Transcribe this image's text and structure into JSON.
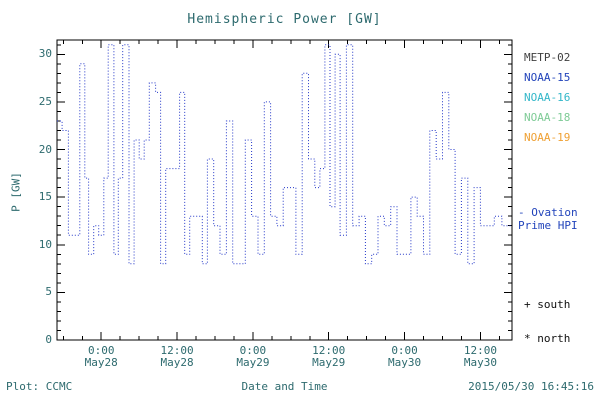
{
  "chart": {
    "title": "Hemispheric Power [GW]",
    "xlabel": "Date and Time",
    "ylabel": "P [GW]"
  },
  "footer": {
    "plot_credit": "Plot: CCMC",
    "timestamp": "2015/05/30 16:45:16"
  },
  "legend": {
    "satellites": [
      {
        "label": "METP-02",
        "color": "#3f3f3f"
      },
      {
        "label": "NOAA-15",
        "color": "#2244bb"
      },
      {
        "label": "NOAA-16",
        "color": "#33b7c9"
      },
      {
        "label": "NOAA-18",
        "color": "#7ecb96"
      },
      {
        "label": "NOAA-19",
        "color": "#efa033"
      }
    ],
    "note_line1": "- Ovation",
    "note_line2": "Prime HPI",
    "note_color": "#2244bb",
    "marker_south": "+ south",
    "marker_north": "* north"
  },
  "colors": {
    "axis_text": "#2d6a6e",
    "axis_line": "#000000",
    "line": "#2236c8",
    "background": "#ffffff"
  },
  "chart_data": {
    "type": "line",
    "line_style": "dotted step plot",
    "title": "Hemispheric Power [GW]",
    "xlabel": "Date and Time",
    "ylabel": "P [GW]",
    "series_label": "Ovation Prime HPI",
    "legend_position": "right",
    "grid": false,
    "x_unit": "hours from May28 0:00",
    "xlim_hours": [
      -7,
      65
    ],
    "ylim": [
      0,
      31.5
    ],
    "yticks": [
      0,
      5,
      10,
      15,
      20,
      25,
      30
    ],
    "xticks": [
      {
        "hour": 0,
        "time": "0:00",
        "date": "May28"
      },
      {
        "hour": 12,
        "time": "12:00",
        "date": "May28"
      },
      {
        "hour": 24,
        "time": "0:00",
        "date": "May29"
      },
      {
        "hour": 36,
        "time": "12:00",
        "date": "May29"
      },
      {
        "hour": 48,
        "time": "0:00",
        "date": "May30"
      },
      {
        "hour": 60,
        "time": "12:00",
        "date": "May30"
      }
    ],
    "points": [
      [
        -7,
        23
      ],
      [
        -6.2,
        22
      ],
      [
        -5.2,
        11
      ],
      [
        -4,
        11
      ],
      [
        -3.4,
        29
      ],
      [
        -2.6,
        17
      ],
      [
        -2,
        9
      ],
      [
        -1.2,
        12
      ],
      [
        -0.4,
        11
      ],
      [
        0.4,
        17
      ],
      [
        1.1,
        31
      ],
      [
        2,
        9
      ],
      [
        2.7,
        17
      ],
      [
        3.4,
        31
      ],
      [
        4.4,
        8
      ],
      [
        5.2,
        21
      ],
      [
        6,
        19
      ],
      [
        6.8,
        21
      ],
      [
        7.6,
        27
      ],
      [
        8.6,
        26
      ],
      [
        9.4,
        8
      ],
      [
        10.2,
        18
      ],
      [
        11.4,
        18
      ],
      [
        12.4,
        26
      ],
      [
        13.2,
        9
      ],
      [
        14,
        13
      ],
      [
        15,
        13
      ],
      [
        16,
        8
      ],
      [
        16.8,
        19
      ],
      [
        17.8,
        12
      ],
      [
        18.8,
        9
      ],
      [
        19.8,
        23
      ],
      [
        20.8,
        8
      ],
      [
        22,
        8
      ],
      [
        22.8,
        21
      ],
      [
        23.8,
        13
      ],
      [
        24.8,
        9
      ],
      [
        25.8,
        25
      ],
      [
        26.8,
        13
      ],
      [
        27.8,
        12
      ],
      [
        28.8,
        16
      ],
      [
        29.8,
        16
      ],
      [
        30.8,
        9
      ],
      [
        31.8,
        28
      ],
      [
        32.8,
        19
      ],
      [
        33.8,
        16
      ],
      [
        34.6,
        18
      ],
      [
        35.4,
        31
      ],
      [
        36.2,
        14
      ],
      [
        37,
        30
      ],
      [
        37.8,
        11
      ],
      [
        38.8,
        31
      ],
      [
        39.8,
        12
      ],
      [
        40.8,
        13
      ],
      [
        41.8,
        8
      ],
      [
        42.8,
        9
      ],
      [
        43.8,
        13
      ],
      [
        44.8,
        12
      ],
      [
        45.8,
        14
      ],
      [
        46.8,
        9
      ],
      [
        48,
        9
      ],
      [
        49,
        15
      ],
      [
        50,
        13
      ],
      [
        51,
        9
      ],
      [
        52,
        22
      ],
      [
        53,
        19
      ],
      [
        54,
        26
      ],
      [
        55,
        20
      ],
      [
        56,
        9
      ],
      [
        57,
        17
      ],
      [
        58,
        8
      ],
      [
        59,
        16
      ],
      [
        60,
        12
      ],
      [
        61.2,
        12
      ],
      [
        62.2,
        13
      ],
      [
        63.4,
        12
      ],
      [
        65,
        12
      ]
    ]
  }
}
